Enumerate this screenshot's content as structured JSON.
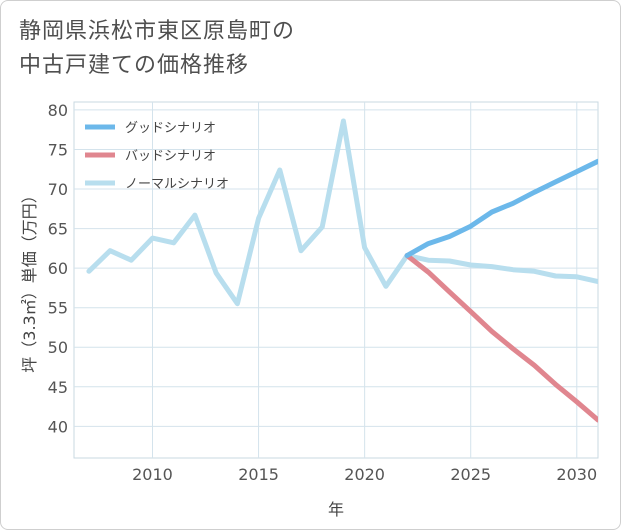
{
  "chart_data": {
    "type": "line",
    "title": [
      "静岡県浜松市東区原島町の",
      "中古戸建ての価格推移"
    ],
    "xlabel": "年",
    "ylabel": "坪（3.3㎡）単価（万円）",
    "xlim": [
      2006.3,
      2031.0
    ],
    "ylim": [
      36.0,
      81.0
    ],
    "xticks": [
      2010,
      2015,
      2020,
      2025,
      2030
    ],
    "yticks": [
      40,
      45,
      50,
      55,
      60,
      65,
      70,
      75,
      80
    ],
    "grid": true,
    "legend_position": "top-left",
    "series": [
      {
        "name": "グッドシナリオ",
        "color": "#6cb8ea",
        "x": [
          2022,
          2023,
          2024,
          2025,
          2026,
          2027,
          2028,
          2029,
          2030,
          2031
        ],
        "y": [
          61.6,
          63.1,
          64.0,
          65.3,
          67.1,
          68.2,
          69.6,
          70.9,
          72.2,
          73.5
        ]
      },
      {
        "name": "バッドシナリオ",
        "color": "#e0868f",
        "x": [
          2022,
          2023,
          2024,
          2025,
          2026,
          2027,
          2028,
          2029,
          2030,
          2031
        ],
        "y": [
          61.6,
          59.5,
          57.0,
          54.5,
          52.0,
          49.8,
          47.7,
          45.3,
          43.1,
          40.8
        ]
      },
      {
        "name": "ノーマルシナリオ",
        "color": "#b8deee",
        "x": [
          2007,
          2008,
          2009,
          2010,
          2011,
          2012,
          2013,
          2014,
          2015,
          2016,
          2017,
          2018,
          2019,
          2020,
          2021,
          2022,
          2023,
          2024,
          2025,
          2026,
          2027,
          2028,
          2029,
          2030,
          2031
        ],
        "y": [
          59.6,
          62.2,
          61.0,
          63.8,
          63.2,
          66.7,
          59.4,
          55.5,
          66.3,
          72.4,
          62.2,
          65.2,
          78.6,
          62.6,
          57.7,
          61.6,
          61.0,
          60.9,
          60.4,
          60.2,
          59.8,
          59.6,
          59.0,
          58.9,
          58.3
        ]
      }
    ]
  }
}
